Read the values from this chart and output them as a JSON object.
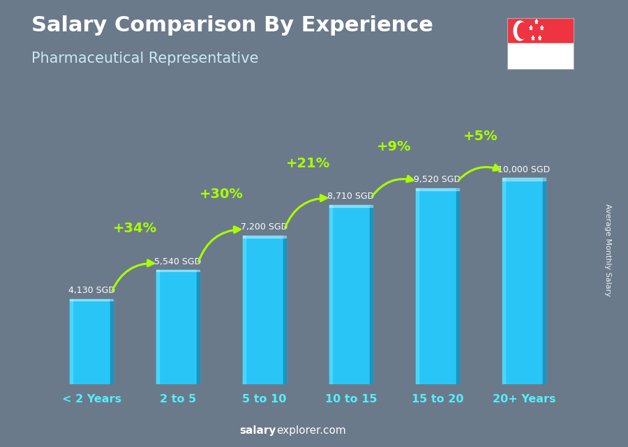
{
  "title": "Salary Comparison By Experience",
  "subtitle": "Pharmaceutical Representative",
  "categories": [
    "< 2 Years",
    "2 to 5",
    "5 to 10",
    "10 to 15",
    "15 to 20",
    "20+ Years"
  ],
  "values": [
    4130,
    5540,
    7200,
    8710,
    9520,
    10000
  ],
  "value_labels": [
    "4,130 SGD",
    "5,540 SGD",
    "7,200 SGD",
    "8,710 SGD",
    "9,520 SGD",
    "10,000 SGD"
  ],
  "pct_labels": [
    "+34%",
    "+30%",
    "+21%",
    "+9%",
    "+5%"
  ],
  "bar_color_main": "#29c5f6",
  "bar_color_light": "#55ddff",
  "bar_color_dark": "#1a8ab5",
  "bar_color_left_face": "#3dd8ff",
  "bg_color": "#6a7a8a",
  "title_color": "#ffffff",
  "subtitle_color": "#cce8f8",
  "axis_label_color": "#55eeff",
  "value_label_color": "#ffffff",
  "pct_color": "#aaff00",
  "ylabel": "Average Monthly Salary",
  "watermark_bold": "salary",
  "watermark_normal": "explorer.com",
  "ylim_max": 13000,
  "flag_red": "#EF3340",
  "flag_white": "#FFFFFF",
  "value_label_offsets": [
    1,
    1,
    1,
    1,
    1,
    1
  ],
  "pct_arc_rad": [
    -0.4,
    -0.4,
    -0.4,
    -0.4,
    -0.4
  ],
  "bar_width": 0.5
}
